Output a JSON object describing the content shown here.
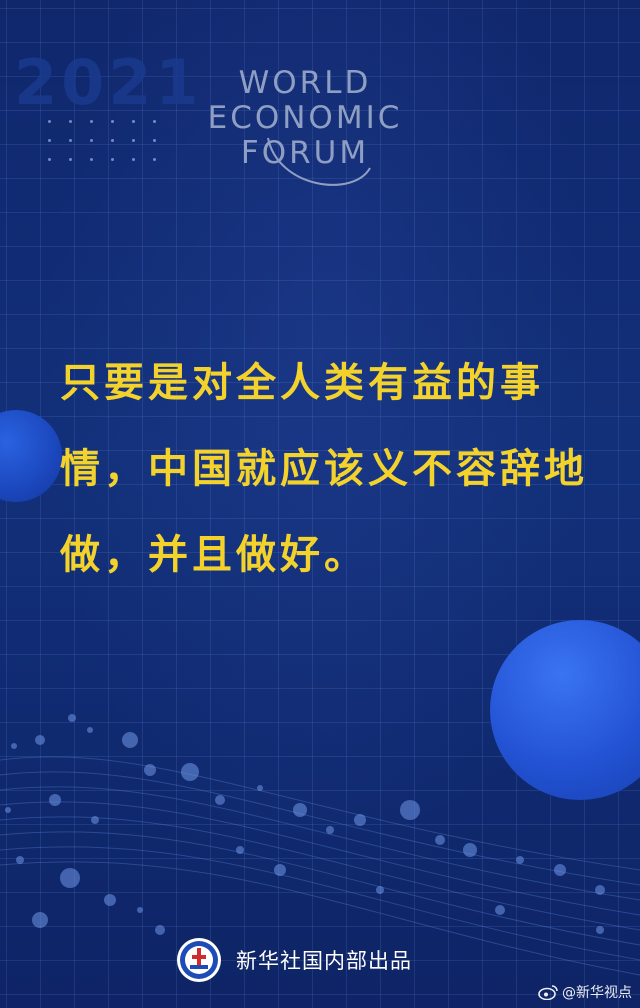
{
  "header": {
    "year": "2021",
    "org_lines": [
      "WORLD",
      "ECONOMIC",
      "FORUM"
    ]
  },
  "quote": {
    "lines": [
      "只要是对全人类有益的事",
      "情，中国就应该义不容辞地",
      "做，并且做好。"
    ]
  },
  "footer": {
    "producer": "新华社国内部出品",
    "emblem_icon": "xinhua-emblem-icon"
  },
  "watermark": {
    "text": "@新华视点",
    "icon": "weibo-icon"
  },
  "colors": {
    "background": "#10276c",
    "quote_text": "#f4d22c",
    "accent_circle": "#2353d4"
  }
}
